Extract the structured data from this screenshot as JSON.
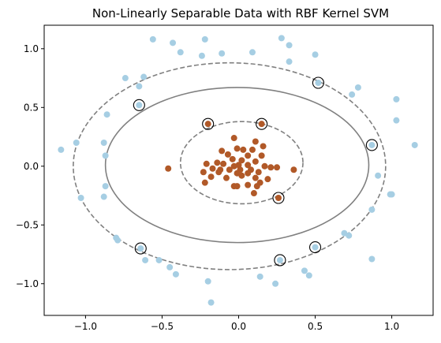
{
  "chart_data": {
    "type": "scatter",
    "title": "Non-Linearly Separable Data with RBF Kernel SVM",
    "xlabel": "",
    "ylabel": "",
    "xlim": [
      -1.27,
      1.27
    ],
    "ylim": [
      -1.27,
      1.2
    ],
    "xticks": [
      -1.0,
      -0.5,
      0.0,
      0.5,
      1.0
    ],
    "yticks": [
      -1.0,
      -0.5,
      0.0,
      0.5,
      1.0
    ],
    "xtick_labels": [
      "−1.0",
      "−0.5",
      "0.0",
      "0.5",
      "1.0"
    ],
    "ytick_labels": [
      "−1.0",
      "−0.5",
      "0.0",
      "0.5",
      "1.0"
    ],
    "grid": false,
    "colors": {
      "outer_class": "#a6cee3",
      "inner_class": "#b15928",
      "boundary": "#808080",
      "support_vector_ring": "#000000"
    },
    "series": [
      {
        "class": "outer",
        "points": [
          [
            -0.56,
            1.08
          ],
          [
            -0.43,
            1.05
          ],
          [
            -0.38,
            0.97
          ],
          [
            -0.24,
            0.94
          ],
          [
            -0.11,
            0.96
          ],
          [
            -0.22,
            1.08
          ],
          [
            0.09,
            0.97
          ],
          [
            0.28,
            1.09
          ],
          [
            0.33,
            1.03
          ],
          [
            0.33,
            0.89
          ],
          [
            0.5,
            0.95
          ],
          [
            0.52,
            0.71
          ],
          [
            0.74,
            0.61
          ],
          [
            0.78,
            0.67
          ],
          [
            1.03,
            0.57
          ],
          [
            1.03,
            0.39
          ],
          [
            0.87,
            0.18
          ],
          [
            1.15,
            0.18
          ],
          [
            0.91,
            -0.08
          ],
          [
            0.87,
            -0.37
          ],
          [
            0.99,
            -0.24
          ],
          [
            1.0,
            -0.24
          ],
          [
            0.69,
            -0.57
          ],
          [
            0.72,
            -0.59
          ],
          [
            0.87,
            -0.79
          ],
          [
            0.5,
            -0.69
          ],
          [
            0.43,
            -0.89
          ],
          [
            0.46,
            -0.93
          ],
          [
            0.24,
            -1.0
          ],
          [
            0.27,
            -0.8
          ],
          [
            0.14,
            -0.94
          ],
          [
            -0.2,
            -0.98
          ],
          [
            -0.18,
            -1.16
          ],
          [
            -0.41,
            -0.92
          ],
          [
            -0.45,
            -0.86
          ],
          [
            -0.52,
            -0.8
          ],
          [
            -0.61,
            -0.8
          ],
          [
            -0.64,
            -0.7
          ],
          [
            -0.8,
            -0.61
          ],
          [
            -0.79,
            -0.63
          ],
          [
            -0.88,
            -0.26
          ],
          [
            -0.87,
            -0.17
          ],
          [
            -0.87,
            0.09
          ],
          [
            -0.88,
            0.2
          ],
          [
            -1.03,
            -0.27
          ],
          [
            -1.06,
            0.2
          ],
          [
            -1.16,
            0.14
          ],
          [
            -0.86,
            0.44
          ],
          [
            -0.74,
            0.75
          ],
          [
            -0.62,
            0.76
          ],
          [
            -0.65,
            0.68
          ],
          [
            -0.65,
            0.52
          ]
        ]
      },
      {
        "class": "inner",
        "points": [
          [
            -0.2,
            0.36
          ],
          [
            0.15,
            0.36
          ],
          [
            -0.03,
            0.24
          ],
          [
            0.11,
            0.21
          ],
          [
            0.16,
            0.17
          ],
          [
            -0.01,
            0.15
          ],
          [
            0.03,
            0.14
          ],
          [
            0.09,
            0.14
          ],
          [
            -0.11,
            0.13
          ],
          [
            -0.07,
            0.1
          ],
          [
            0.06,
            0.09
          ],
          [
            0.15,
            0.09
          ],
          [
            -0.04,
            0.06
          ],
          [
            0.02,
            0.05
          ],
          [
            0.11,
            0.04
          ],
          [
            -0.14,
            0.03
          ],
          [
            -0.1,
            0.02
          ],
          [
            0.0,
            0.01
          ],
          [
            0.06,
            0.01
          ],
          [
            0.17,
            0.0
          ],
          [
            0.25,
            -0.01
          ],
          [
            -0.03,
            0.0
          ],
          [
            -0.21,
            0.02
          ],
          [
            -0.17,
            -0.02
          ],
          [
            -0.12,
            -0.03
          ],
          [
            -0.06,
            -0.03
          ],
          [
            0.01,
            -0.03
          ],
          [
            0.08,
            -0.03
          ],
          [
            0.13,
            -0.05
          ],
          [
            -0.23,
            -0.05
          ],
          [
            -0.13,
            -0.05
          ],
          [
            -0.01,
            -0.06
          ],
          [
            0.06,
            -0.06
          ],
          [
            0.21,
            -0.01
          ],
          [
            -0.46,
            -0.02
          ],
          [
            0.36,
            -0.03
          ],
          [
            -0.18,
            -0.09
          ],
          [
            -0.08,
            -0.1
          ],
          [
            0.02,
            -0.08
          ],
          [
            0.11,
            -0.1
          ],
          [
            0.19,
            -0.11
          ],
          [
            -0.22,
            -0.14
          ],
          [
            0.14,
            -0.14
          ],
          [
            0.06,
            -0.16
          ],
          [
            -0.03,
            -0.17
          ],
          [
            -0.01,
            -0.17
          ],
          [
            0.12,
            -0.17
          ],
          [
            0.1,
            -0.23
          ],
          [
            0.26,
            -0.27
          ]
        ]
      }
    ],
    "support_vectors": [
      [
        0.52,
        0.71
      ],
      [
        -0.65,
        0.52
      ],
      [
        0.87,
        0.18
      ],
      [
        0.5,
        -0.69
      ],
      [
        0.27,
        -0.8
      ],
      [
        -0.64,
        -0.7
      ],
      [
        -0.2,
        0.36
      ],
      [
        0.15,
        0.36
      ],
      [
        0.26,
        -0.27
      ]
    ],
    "decision_contours": [
      {
        "level": 0,
        "style": "solid",
        "center": [
          -0.01,
          0.01
        ],
        "radius_x": 0.86,
        "radius_y": 0.66
      },
      {
        "level": -1,
        "style": "dashed",
        "center": [
          -0.06,
          -0.0
        ],
        "radius_x": 1.02,
        "radius_y": 0.88
      },
      {
        "level": 1,
        "style": "dashed",
        "center": [
          0.02,
          0.03
        ],
        "radius_x": 0.4,
        "radius_y": 0.35
      }
    ]
  }
}
